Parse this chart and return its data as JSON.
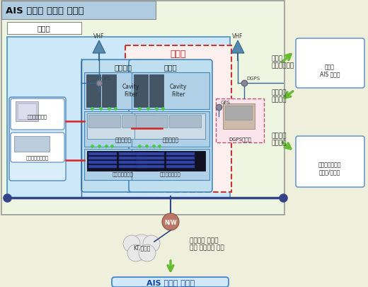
{
  "title": "AIS 이중화 기지국 시스템",
  "gijiguk": "기지국",
  "ijunghwa": "이중화",
  "yebijangchi": "예비장치",
  "jujangchi": "주장치",
  "cavity_filter": "Cavity\nFilter",
  "songsusingi": "송수신장치",
  "gijiguk_jeojangi": "기지국제어장치",
  "mureonjeon": "무정전전원장치",
  "wongeogjeon": "원격전원대여장치",
  "vhf": "VHF",
  "gps": "GPS",
  "dgps": "DGPS",
  "dgps_rx": "DGPS수신기",
  "nw": "N/W",
  "kt": "KT.전용랜",
  "desc": "보정되어 수신된\n선박 위치정보 전송",
  "ais_ops": "AIS 운영국 시스템",
  "bojeongjwi": "보정된\n위치정보수신",
  "bojeongochi1": "보정오치\n정보송신",
  "bojeongochi2": "보정오치\n정보수신",
  "seonbakais": "선박용\nAIS 단말기",
  "wiseonghang": "위성항법사무소\n기준국/감시국",
  "bg_color": "#eef0dc",
  "main_box_color": "#cce4f5",
  "inner_box_color": "#b8d9ee",
  "line_color": "#334466",
  "red_line_color": "#dd2222",
  "arrow_color": "#77cc44",
  "text_color": "#222222",
  "title_bg": "#a8c8e0"
}
